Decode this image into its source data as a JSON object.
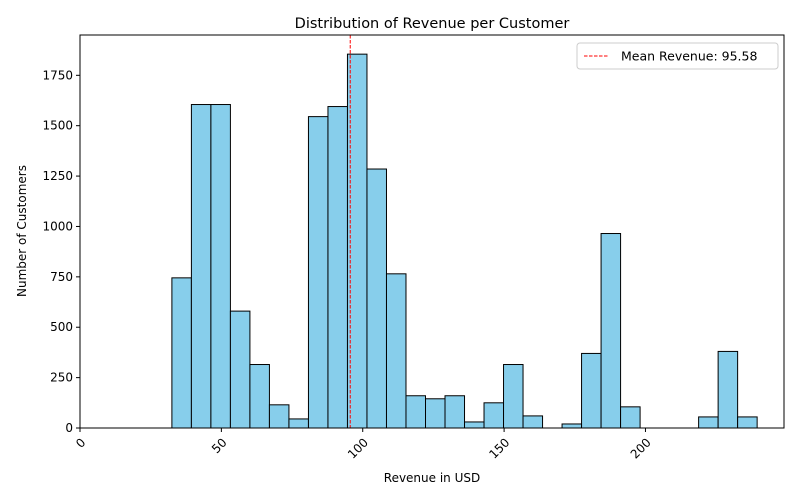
{
  "chart_data": {
    "type": "bar",
    "title": "Distribution of Revenue per Customer",
    "xlabel": "Revenue in USD",
    "ylabel": "Number of Customers",
    "xlim": [
      0,
      249
    ],
    "ylim": [
      0,
      1950
    ],
    "x_ticks": [
      0,
      50,
      100,
      150,
      200
    ],
    "x_tick_labels": [
      "0",
      "50",
      "100",
      "150",
      "200"
    ],
    "y_ticks": [
      0,
      250,
      500,
      750,
      1000,
      1250,
      1500,
      1750
    ],
    "y_tick_labels": [
      "0",
      "250",
      "500",
      "750",
      "1000",
      "1250",
      "1500",
      "1750"
    ],
    "bar_color": "#87CEEB",
    "bar_edge_color": "#000000",
    "grid": false,
    "bins": [
      {
        "x0": 32.5,
        "x1": 39.4,
        "count": 745
      },
      {
        "x0": 39.4,
        "x1": 46.3,
        "count": 1605
      },
      {
        "x0": 46.3,
        "x1": 53.2,
        "count": 1605
      },
      {
        "x0": 53.2,
        "x1": 60.1,
        "count": 580
      },
      {
        "x0": 60.1,
        "x1": 67.0,
        "count": 315
      },
      {
        "x0": 67.0,
        "x1": 73.9,
        "count": 115
      },
      {
        "x0": 73.9,
        "x1": 80.8,
        "count": 45
      },
      {
        "x0": 80.8,
        "x1": 87.7,
        "count": 1545
      },
      {
        "x0": 87.7,
        "x1": 94.6,
        "count": 1595
      },
      {
        "x0": 94.6,
        "x1": 101.5,
        "count": 1855
      },
      {
        "x0": 101.5,
        "x1": 108.4,
        "count": 1285
      },
      {
        "x0": 108.4,
        "x1": 115.3,
        "count": 765
      },
      {
        "x0": 115.3,
        "x1": 122.2,
        "count": 160
      },
      {
        "x0": 122.2,
        "x1": 129.1,
        "count": 145
      },
      {
        "x0": 129.1,
        "x1": 136.0,
        "count": 160
      },
      {
        "x0": 136.0,
        "x1": 142.9,
        "count": 30
      },
      {
        "x0": 142.9,
        "x1": 149.8,
        "count": 125
      },
      {
        "x0": 149.8,
        "x1": 156.7,
        "count": 315
      },
      {
        "x0": 156.7,
        "x1": 163.6,
        "count": 60
      },
      {
        "x0": 163.6,
        "x1": 170.5,
        "count": 0
      },
      {
        "x0": 170.5,
        "x1": 177.4,
        "count": 20
      },
      {
        "x0": 177.4,
        "x1": 184.3,
        "count": 370
      },
      {
        "x0": 184.3,
        "x1": 191.2,
        "count": 965
      },
      {
        "x0": 191.2,
        "x1": 198.1,
        "count": 105
      },
      {
        "x0": 198.1,
        "x1": 205.0,
        "count": 0
      },
      {
        "x0": 205.0,
        "x1": 211.9,
        "count": 0
      },
      {
        "x0": 211.9,
        "x1": 218.8,
        "count": 0
      },
      {
        "x0": 218.8,
        "x1": 225.7,
        "count": 55
      },
      {
        "x0": 225.7,
        "x1": 232.6,
        "count": 380
      },
      {
        "x0": 232.6,
        "x1": 239.5,
        "count": 55
      }
    ],
    "mean_line": {
      "value": 95.58,
      "color": "#ff0000",
      "style": "dashed"
    },
    "legend": {
      "position": "top-right",
      "entries": [
        "Mean Revenue: 95.58"
      ]
    }
  }
}
